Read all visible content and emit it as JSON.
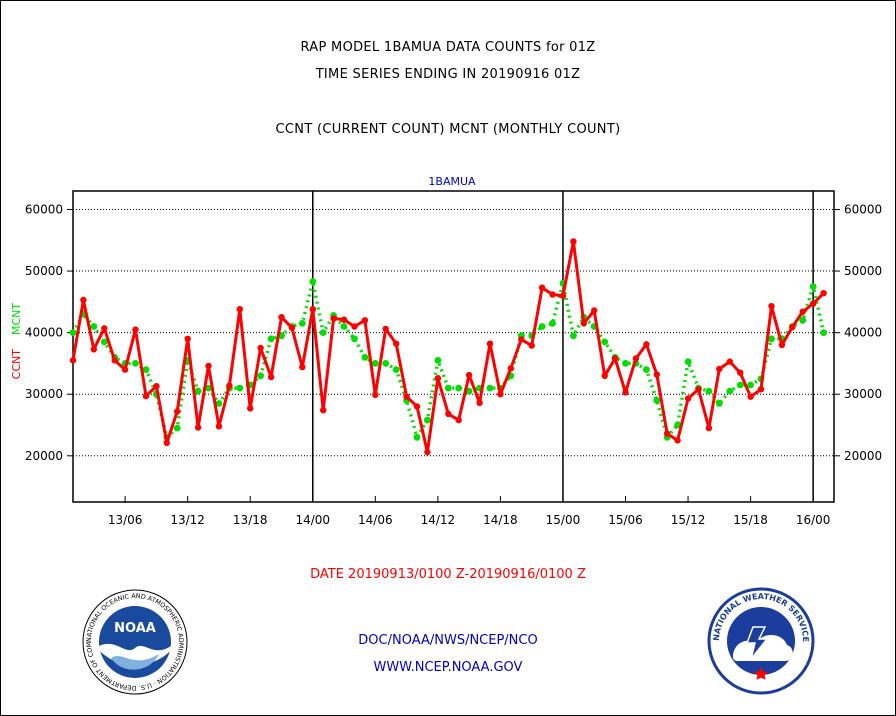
{
  "header": {
    "title_line1": "RAP MODEL 1BAMUA DATA COUNTS for 01Z",
    "title_line2": "TIME SERIES ENDING IN 20190916 01Z",
    "subtitle": "CCNT (CURRENT COUNT) MCNT (MONTHLY COUNT)"
  },
  "footer": {
    "date_range": "DATE 20190913/0100 Z-20190916/0100 Z",
    "agency": "DOC/NOAA/NWS/NCEP/NCO",
    "website": "WWW.NCEP.NOAA.GOV"
  },
  "logos": {
    "noaa": {
      "text": "NOAA",
      "ring_text": "NATIONAL OCEANIC AND ATMOSPHERIC ADMINISTRATION · U.S. DEPARTMENT OF COMMERCE"
    },
    "nws": {
      "ring_text": "NATIONAL WEATHER SERVICE"
    }
  },
  "colors": {
    "ccnt": "#ff0000",
    "mcnt": "#00dd00",
    "title": "#000000",
    "series_label": "#0000cc",
    "footer_link": "#0000cc",
    "date": "#ff0000"
  },
  "chart_data": {
    "type": "line",
    "series_label": "1BAMUA",
    "xlabel": "",
    "ylabel_left": [
      "CCNT",
      "MCNT"
    ],
    "ylim": [
      12500,
      63000
    ],
    "y_ticks": [
      20000,
      30000,
      40000,
      50000,
      60000
    ],
    "y_tick_labels": [
      "20000",
      "30000",
      "40000",
      "50000",
      "60000"
    ],
    "x_range": [
      "13/01",
      "16/02"
    ],
    "x_tick_labels": [
      "13/06",
      "13/12",
      "13/18",
      "14/00",
      "14/06",
      "14/12",
      "14/18",
      "15/00",
      "15/06",
      "15/12",
      "15/18",
      "16/00"
    ],
    "day_boundaries": [
      "14/00",
      "15/00",
      "16/00"
    ],
    "grid": "horizontal dotted",
    "series": [
      {
        "name": "CCNT",
        "color": "#ff0000",
        "x": [
          "13/01",
          "13/02",
          "13/03",
          "13/04",
          "13/05",
          "13/06",
          "13/07",
          "13/08",
          "13/09",
          "13/10",
          "13/11",
          "13/12",
          "13/13",
          "13/14",
          "13/15",
          "13/16",
          "13/17",
          "13/18",
          "13/19",
          "13/20",
          "13/21",
          "13/22",
          "13/23",
          "14/00",
          "14/01",
          "14/02",
          "14/03",
          "14/04",
          "14/05",
          "14/06",
          "14/07",
          "14/08",
          "14/09",
          "14/10",
          "14/11",
          "14/12",
          "14/13",
          "14/14",
          "14/15",
          "14/16",
          "14/17",
          "14/18",
          "14/19",
          "14/20",
          "14/21",
          "14/22",
          "14/23",
          "15/00",
          "15/01",
          "15/02",
          "15/03",
          "15/04",
          "15/05",
          "15/06",
          "15/07",
          "15/08",
          "15/09",
          "15/10",
          "15/11",
          "15/12",
          "15/13",
          "15/14",
          "15/15",
          "15/16",
          "15/17",
          "15/18",
          "15/19",
          "15/20",
          "15/21",
          "15/22",
          "15/23",
          "16/00",
          "16/01"
        ],
        "values": [
          35500,
          45300,
          37300,
          40700,
          35500,
          34000,
          40500,
          29700,
          31300,
          22100,
          27200,
          39000,
          24600,
          34600,
          24800,
          31400,
          43800,
          27700,
          37500,
          32800,
          42500,
          40800,
          34400,
          43800,
          27400,
          42300,
          42100,
          41000,
          42000,
          29900,
          40600,
          38200,
          29600,
          28000,
          20600,
          32600,
          26800,
          25800,
          33100,
          28600,
          38200,
          30000,
          34200,
          38900,
          37900,
          47300,
          46200,
          46000,
          54800,
          41500,
          43600,
          33000,
          35800,
          30300,
          35800,
          38100,
          33200,
          23600,
          22500,
          29300,
          30800,
          24500,
          34100,
          35300,
          33500,
          29600,
          30800,
          44300,
          38000,
          40900,
          43400,
          44700,
          46400
        ]
      },
      {
        "name": "MCNT",
        "color": "#00dd00",
        "x": [
          "13/01",
          "13/02",
          "13/03",
          "13/04",
          "13/05",
          "13/06",
          "13/07",
          "13/08",
          "13/09",
          "13/10",
          "13/11",
          "13/12",
          "13/13",
          "13/14",
          "13/15",
          "13/16",
          "13/17",
          "13/18",
          "13/19",
          "13/20",
          "13/21",
          "13/22",
          "13/23",
          "14/00",
          "14/01",
          "14/02",
          "14/03",
          "14/04",
          "14/05",
          "14/06",
          "14/07",
          "14/08",
          "14/09",
          "14/10",
          "14/11",
          "14/12",
          "14/13",
          "14/14",
          "14/15",
          "14/16",
          "14/17",
          "14/18",
          "14/19",
          "14/20",
          "14/21",
          "14/22",
          "14/23",
          "15/00",
          "15/01",
          "15/02",
          "15/03",
          "15/04",
          "15/05",
          "15/06",
          "15/07",
          "15/08",
          "15/09",
          "15/10",
          "15/11",
          "15/12",
          "15/13",
          "15/14",
          "15/15",
          "15/16",
          "15/17",
          "15/18",
          "15/19",
          "15/20",
          "15/21",
          "15/22",
          "15/23",
          "16/00",
          "16/01"
        ],
        "values": [
          40000,
          43000,
          41000,
          38500,
          36000,
          35000,
          35000,
          34000,
          30000,
          23000,
          24500,
          35500,
          30500,
          31000,
          28500,
          31000,
          31000,
          31500,
          33000,
          39000,
          39500,
          41000,
          41500,
          48300,
          40000,
          42800,
          41000,
          39000,
          36000,
          35000,
          35000,
          34000,
          29000,
          23000,
          25800,
          35500,
          31000,
          31000,
          30500,
          31000,
          31000,
          31000,
          33000,
          39500,
          39500,
          41000,
          41500,
          48000,
          39500,
          42500,
          41000,
          38500,
          36000,
          35000,
          35000,
          34000,
          29000,
          23000,
          25000,
          35300,
          31000,
          30500,
          28500,
          30500,
          31500,
          31500,
          32500,
          39000,
          39000,
          41000,
          42000,
          47500,
          40000
        ]
      }
    ]
  }
}
